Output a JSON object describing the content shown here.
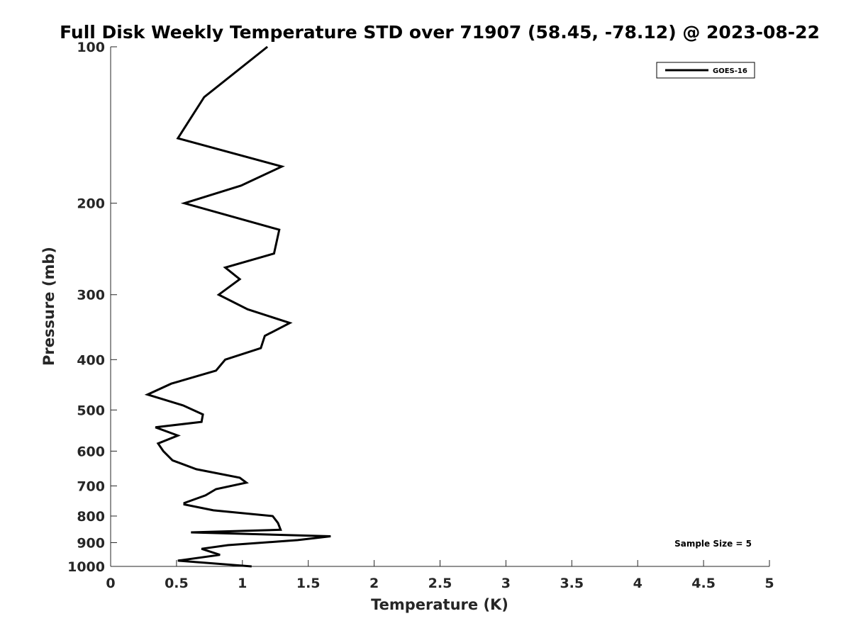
{
  "chart_data": {
    "type": "line",
    "title": "Full Disk Weekly Temperature STD over 71907 (58.45, -78.12) @ 2023-08-22",
    "xlabel": "Temperature (K)",
    "ylabel": "Pressure (mb)",
    "xlim": [
      0,
      5
    ],
    "ylim": [
      1000,
      100
    ],
    "yscale": "log",
    "y_reversed": true,
    "grid": false,
    "legend_position": "top-right",
    "x_ticks": [
      "0",
      "0.5",
      "1",
      "1.5",
      "2",
      "2.5",
      "3",
      "3.5",
      "4",
      "4.5",
      "5"
    ],
    "y_ticks": [
      "100",
      "200",
      "300",
      "400",
      "500",
      "600",
      "700",
      "800",
      "900",
      "1000"
    ],
    "annotation": "Sample Size = 5",
    "series": [
      {
        "name": "GOES-16",
        "color": "#000000",
        "points": [
          [
            1.19,
            100
          ],
          [
            0.71,
            125
          ],
          [
            0.51,
            150
          ],
          [
            1.3,
            170
          ],
          [
            0.99,
            185
          ],
          [
            0.56,
            200
          ],
          [
            1.28,
            225
          ],
          [
            1.24,
            250
          ],
          [
            0.87,
            266
          ],
          [
            0.98,
            280
          ],
          [
            0.82,
            300
          ],
          [
            1.04,
            320
          ],
          [
            1.36,
            340
          ],
          [
            1.17,
            360
          ],
          [
            1.14,
            380
          ],
          [
            0.87,
            400
          ],
          [
            0.8,
            420
          ],
          [
            0.46,
            445
          ],
          [
            0.28,
            467
          ],
          [
            0.55,
            490
          ],
          [
            0.7,
            510
          ],
          [
            0.69,
            527
          ],
          [
            0.34,
            540
          ],
          [
            0.51,
            560
          ],
          [
            0.36,
            580
          ],
          [
            0.4,
            600
          ],
          [
            0.47,
            625
          ],
          [
            0.65,
            650
          ],
          [
            0.98,
            675
          ],
          [
            1.03,
            690
          ],
          [
            0.8,
            710
          ],
          [
            0.72,
            730
          ],
          [
            0.56,
            755
          ],
          [
            0.56,
            760
          ],
          [
            0.78,
            780
          ],
          [
            1.23,
            800
          ],
          [
            1.27,
            825
          ],
          [
            1.29,
            850
          ],
          [
            0.61,
            860
          ],
          [
            1.67,
            875
          ],
          [
            1.42,
            890
          ],
          [
            0.89,
            910
          ],
          [
            0.69,
            925
          ],
          [
            0.83,
            950
          ],
          [
            0.51,
            975
          ],
          [
            1.07,
            1000
          ]
        ]
      }
    ]
  }
}
